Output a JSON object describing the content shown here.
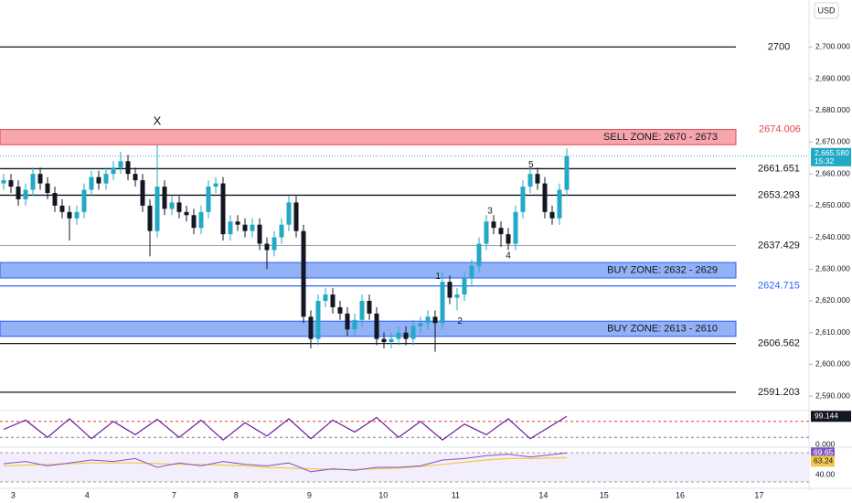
{
  "chart_data": {
    "type": "candlestick",
    "currency": "USD",
    "ylim": [
      2585.7,
      2714.8
    ],
    "yticks": [
      {
        "value": 2590,
        "label": "2,590.000"
      },
      {
        "value": 2600,
        "label": "2,600.000"
      },
      {
        "value": 2610,
        "label": "2,610.000"
      },
      {
        "value": 2620,
        "label": "2,620.000"
      },
      {
        "value": 2630,
        "label": "2,630.000"
      },
      {
        "value": 2640,
        "label": "2,640.000"
      },
      {
        "value": 2650,
        "label": "2,650.000"
      },
      {
        "value": 2660,
        "label": "2,660.000"
      },
      {
        "value": 2670,
        "label": "2,670.000"
      },
      {
        "value": 2680,
        "label": "2,680.000"
      },
      {
        "value": 2690,
        "label": "2,690.000"
      },
      {
        "value": 2700,
        "label": "2,700.000"
      }
    ],
    "candles": {
      "up_color": "#22a9c6",
      "down_color": "#131722",
      "open": [
        2657,
        2658,
        2656,
        2652,
        2655,
        2660,
        2657,
        2654,
        2650,
        2648,
        2646,
        2648,
        2655,
        2659,
        2657,
        2660,
        2662,
        2664,
        2660,
        2658,
        2650,
        2642,
        2656,
        2649,
        2651,
        2648,
        2647,
        2643,
        2648,
        2656,
        2657,
        2641,
        2645,
        2644,
        2642,
        2644,
        2638,
        2636,
        2640,
        2644,
        2651,
        2642,
        2615,
        2608,
        2620,
        2622,
        2618,
        2616,
        2611,
        2614,
        2620,
        2616,
        2608,
        2607,
        2608,
        2610,
        2608,
        2612,
        2613,
        2615,
        2613,
        2626,
        2621,
        2622,
        2627,
        2631,
        2638,
        2645,
        2643,
        2641,
        2638,
        2648,
        2656,
        2660,
        2657,
        2648,
        2646,
        2655
      ],
      "high": [
        2660,
        2660,
        2658,
        2657,
        2662,
        2662,
        2659,
        2656,
        2652,
        2650,
        2650,
        2657,
        2661,
        2661,
        2662,
        2664,
        2667,
        2666,
        2662,
        2660,
        2652,
        2669,
        2658,
        2653,
        2653,
        2650,
        2649,
        2650,
        2658,
        2659,
        2659,
        2647,
        2647,
        2646,
        2646,
        2646,
        2640,
        2642,
        2646,
        2653,
        2653,
        2644,
        2617,
        2622,
        2624,
        2624,
        2620,
        2618,
        2616,
        2622,
        2622,
        2618,
        2610,
        2610,
        2612,
        2612,
        2614,
        2615,
        2617,
        2617,
        2629,
        2628,
        2624,
        2629,
        2633,
        2640,
        2647,
        2647,
        2645,
        2643,
        2650,
        2658,
        2662,
        2662,
        2659,
        2650,
        2657,
        2668
      ],
      "low": [
        2655,
        2654,
        2650,
        2650,
        2653,
        2655,
        2652,
        2648,
        2646,
        2639,
        2644,
        2646,
        2653,
        2655,
        2655,
        2658,
        2660,
        2658,
        2656,
        2648,
        2634,
        2640,
        2647,
        2647,
        2646,
        2645,
        2641,
        2641,
        2646,
        2654,
        2639,
        2639,
        2642,
        2640,
        2640,
        2636,
        2630,
        2634,
        2638,
        2642,
        2640,
        2613,
        2605,
        2606,
        2618,
        2616,
        2614,
        2609,
        2609,
        2612,
        2614,
        2606,
        2605,
        2605,
        2606,
        2606,
        2606,
        2610,
        2611,
        2604,
        2611,
        2619,
        2617,
        2620,
        2625,
        2629,
        2636,
        2641,
        2637,
        2636,
        2636,
        2646,
        2654,
        2655,
        2646,
        2644,
        2644,
        2653
      ],
      "close": [
        2658,
        2656,
        2652,
        2655,
        2660,
        2657,
        2654,
        2650,
        2648,
        2646,
        2648,
        2655,
        2659,
        2657,
        2660,
        2662,
        2664,
        2660,
        2658,
        2650,
        2642,
        2656,
        2649,
        2651,
        2648,
        2647,
        2643,
        2648,
        2656,
        2657,
        2641,
        2645,
        2644,
        2642,
        2644,
        2638,
        2636,
        2640,
        2644,
        2651,
        2642,
        2615,
        2608,
        2620,
        2622,
        2618,
        2616,
        2611,
        2614,
        2620,
        2616,
        2608,
        2607,
        2608,
        2610,
        2608,
        2612,
        2613,
        2615,
        2613,
        2626,
        2621,
        2622,
        2627,
        2631,
        2638,
        2645,
        2643,
        2641,
        2638,
        2648,
        2656,
        2660,
        2657,
        2648,
        2646,
        2655,
        2665.58
      ]
    },
    "last_price": {
      "value": 2665.58,
      "label": "2,665.580"
    },
    "countdown": "15:32",
    "levels": [
      {
        "value": 2700,
        "color": "#131722"
      },
      {
        "value": 2661.651,
        "color": "#131722"
      },
      {
        "value": 2653.293,
        "color": "#131722"
      },
      {
        "value": 2637.429,
        "color": "#787b86"
      },
      {
        "value": 2624.715,
        "color": "#2962ff"
      },
      {
        "value": 2606.562,
        "color": "#131722"
      },
      {
        "value": 2591.203,
        "color": "#131722"
      }
    ],
    "zones": [
      {
        "label": "SELL ZONE: 2670 - 2673",
        "top": 2674.006,
        "bottom": 2669.2,
        "fill": "#f8a5ac",
        "stroke": "#e0454f",
        "top_color": "#e0454f"
      },
      {
        "label": "BUY ZONE: 2632 - 2629",
        "top": 2632.1,
        "bottom": 2627.2,
        "fill": "#93b2f5",
        "stroke": "#2962ff"
      },
      {
        "label": "BUY ZONE: 2613 - 2610",
        "top": 2613.6,
        "bottom": 2608.8,
        "fill": "#93b2f5",
        "stroke": "#2962ff"
      }
    ],
    "annotations": [
      {
        "text": "X",
        "index": 21,
        "price": 2676.5
      },
      {
        "text": "1",
        "index": 59.4,
        "price": 2627.7
      },
      {
        "text": "2",
        "index": 62.4,
        "price": 2613.5
      },
      {
        "text": "3",
        "index": 66.5,
        "price": 2648.3
      },
      {
        "text": "4",
        "index": 69,
        "price": 2634.2
      },
      {
        "text": "5",
        "index": 72.1,
        "price": 2662.8
      }
    ],
    "x_labels": [
      {
        "index": 1.3,
        "label": "3"
      },
      {
        "index": 11.4,
        "label": "4"
      },
      {
        "index": 23.3,
        "label": "7"
      },
      {
        "index": 31.8,
        "label": "8"
      },
      {
        "index": 41.8,
        "label": "9"
      },
      {
        "index": 51.9,
        "label": "10"
      },
      {
        "index": 61.8,
        "label": "11"
      },
      {
        "index": 73.8,
        "label": "14"
      },
      {
        "index": 82.1,
        "label": "15"
      },
      {
        "index": 92.5,
        "label": "16"
      },
      {
        "index": 103.3,
        "label": "17"
      }
    ],
    "stochastic": {
      "ylim": [
        0,
        100
      ],
      "bands": [
        20,
        80
      ],
      "yticks": [
        {
          "value": 0,
          "label": "0.000"
        }
      ],
      "color": "#6a1b9a",
      "x": [
        0,
        3,
        6,
        9,
        12,
        15,
        18,
        21,
        24,
        27,
        30,
        33,
        36,
        39,
        42,
        45,
        48,
        51,
        54,
        57,
        60,
        63,
        66,
        69,
        72,
        77
      ],
      "values": [
        50,
        85,
        20,
        90,
        15,
        80,
        30,
        88,
        20,
        85,
        10,
        75,
        25,
        90,
        15,
        85,
        40,
        95,
        20,
        80,
        10,
        70,
        30,
        90,
        15,
        99.144
      ]
    },
    "rsi": {
      "ylim": [
        30,
        70
      ],
      "yticks": [
        {
          "value": 40,
          "label": "40.00"
        }
      ],
      "color": "#7e57c2",
      "ma_color": "#f2c94c",
      "x": [
        0,
        3,
        6,
        9,
        12,
        15,
        18,
        21,
        24,
        27,
        30,
        33,
        36,
        39,
        42,
        45,
        48,
        51,
        54,
        57,
        60,
        63,
        66,
        69,
        72,
        77
      ],
      "values": [
        55,
        58,
        52,
        56,
        60,
        58,
        62,
        50,
        56,
        52,
        58,
        54,
        52,
        56,
        44,
        48,
        46,
        50,
        50,
        52,
        60,
        62,
        66,
        68,
        64,
        69.65
      ],
      "ma": [
        52,
        53,
        54,
        55,
        56,
        56,
        56,
        55,
        54,
        54,
        53,
        52,
        50,
        49,
        48,
        47,
        47,
        48,
        49,
        51,
        54,
        57,
        60,
        62,
        62,
        63.24
      ]
    }
  }
}
